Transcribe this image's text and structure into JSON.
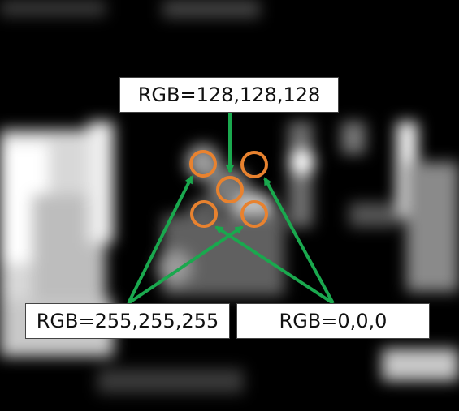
{
  "labels": {
    "top": "RGB=128,128,128",
    "left": "RGB=255,255,255",
    "right": "RGB=0,0,0"
  },
  "colors": {
    "circle_stroke": "#e8822f",
    "arrow": "#1aa84e",
    "background": "#000000",
    "label_fill": "#ffffff"
  }
}
